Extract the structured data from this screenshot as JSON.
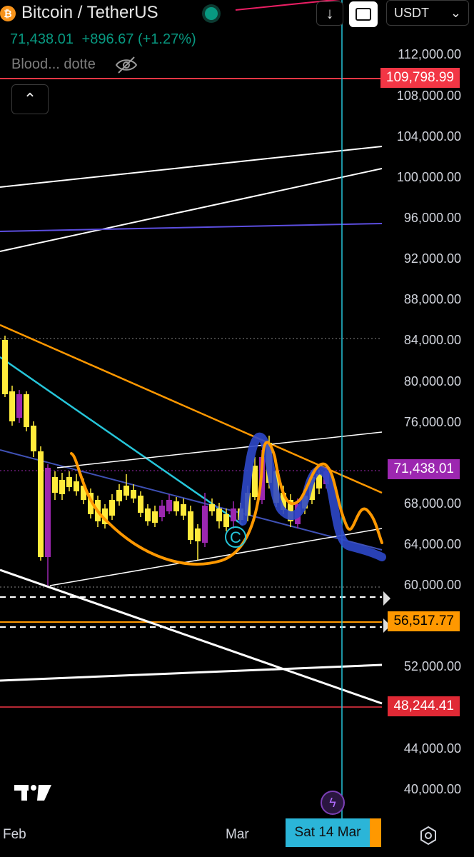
{
  "header": {
    "coin_symbol": "₿",
    "title": "Bitcoin / TetherUS",
    "currency": "USDT",
    "price": "71,438.01",
    "change": "+896.67 (+1.27%)",
    "indicator_label": "Blood... dotte"
  },
  "price_axis": {
    "labels": [
      "112,000.00",
      "108,000.00",
      "104,000.00",
      "100,000.00",
      "96,000.00",
      "92,000.00",
      "88,000.00",
      "84,000.00",
      "80,000.00",
      "76,000.00",
      "68,000.00",
      "64,000.00",
      "60,000.00",
      "52,000.00",
      "44,000.00",
      "40,000.00"
    ]
  },
  "price_tags": {
    "upper_red": "109,798.99",
    "current": "71,438.01",
    "orange": "56,517.77",
    "lower_red": "48,244.41"
  },
  "time_axis": {
    "feb": "Feb",
    "mar": "Mar",
    "cursor_date": "Sat 14 Mar"
  },
  "annotations": {
    "wave_label": "C"
  },
  "colors": {
    "up": "#089981",
    "candle_up": "#ffeb3b",
    "candle_down": "#9c27b0",
    "orange": "#ff9800",
    "blue": "#2d48c9",
    "cyan": "#26c6da",
    "red": "#f23645"
  },
  "icons": [
    "bitcoin-icon",
    "arrow-down-icon",
    "fit-screen-icon",
    "chevron-down-icon",
    "eye-off-icon",
    "chevron-up-icon",
    "tradingview-logo",
    "lightning-icon",
    "gear-icon"
  ]
}
